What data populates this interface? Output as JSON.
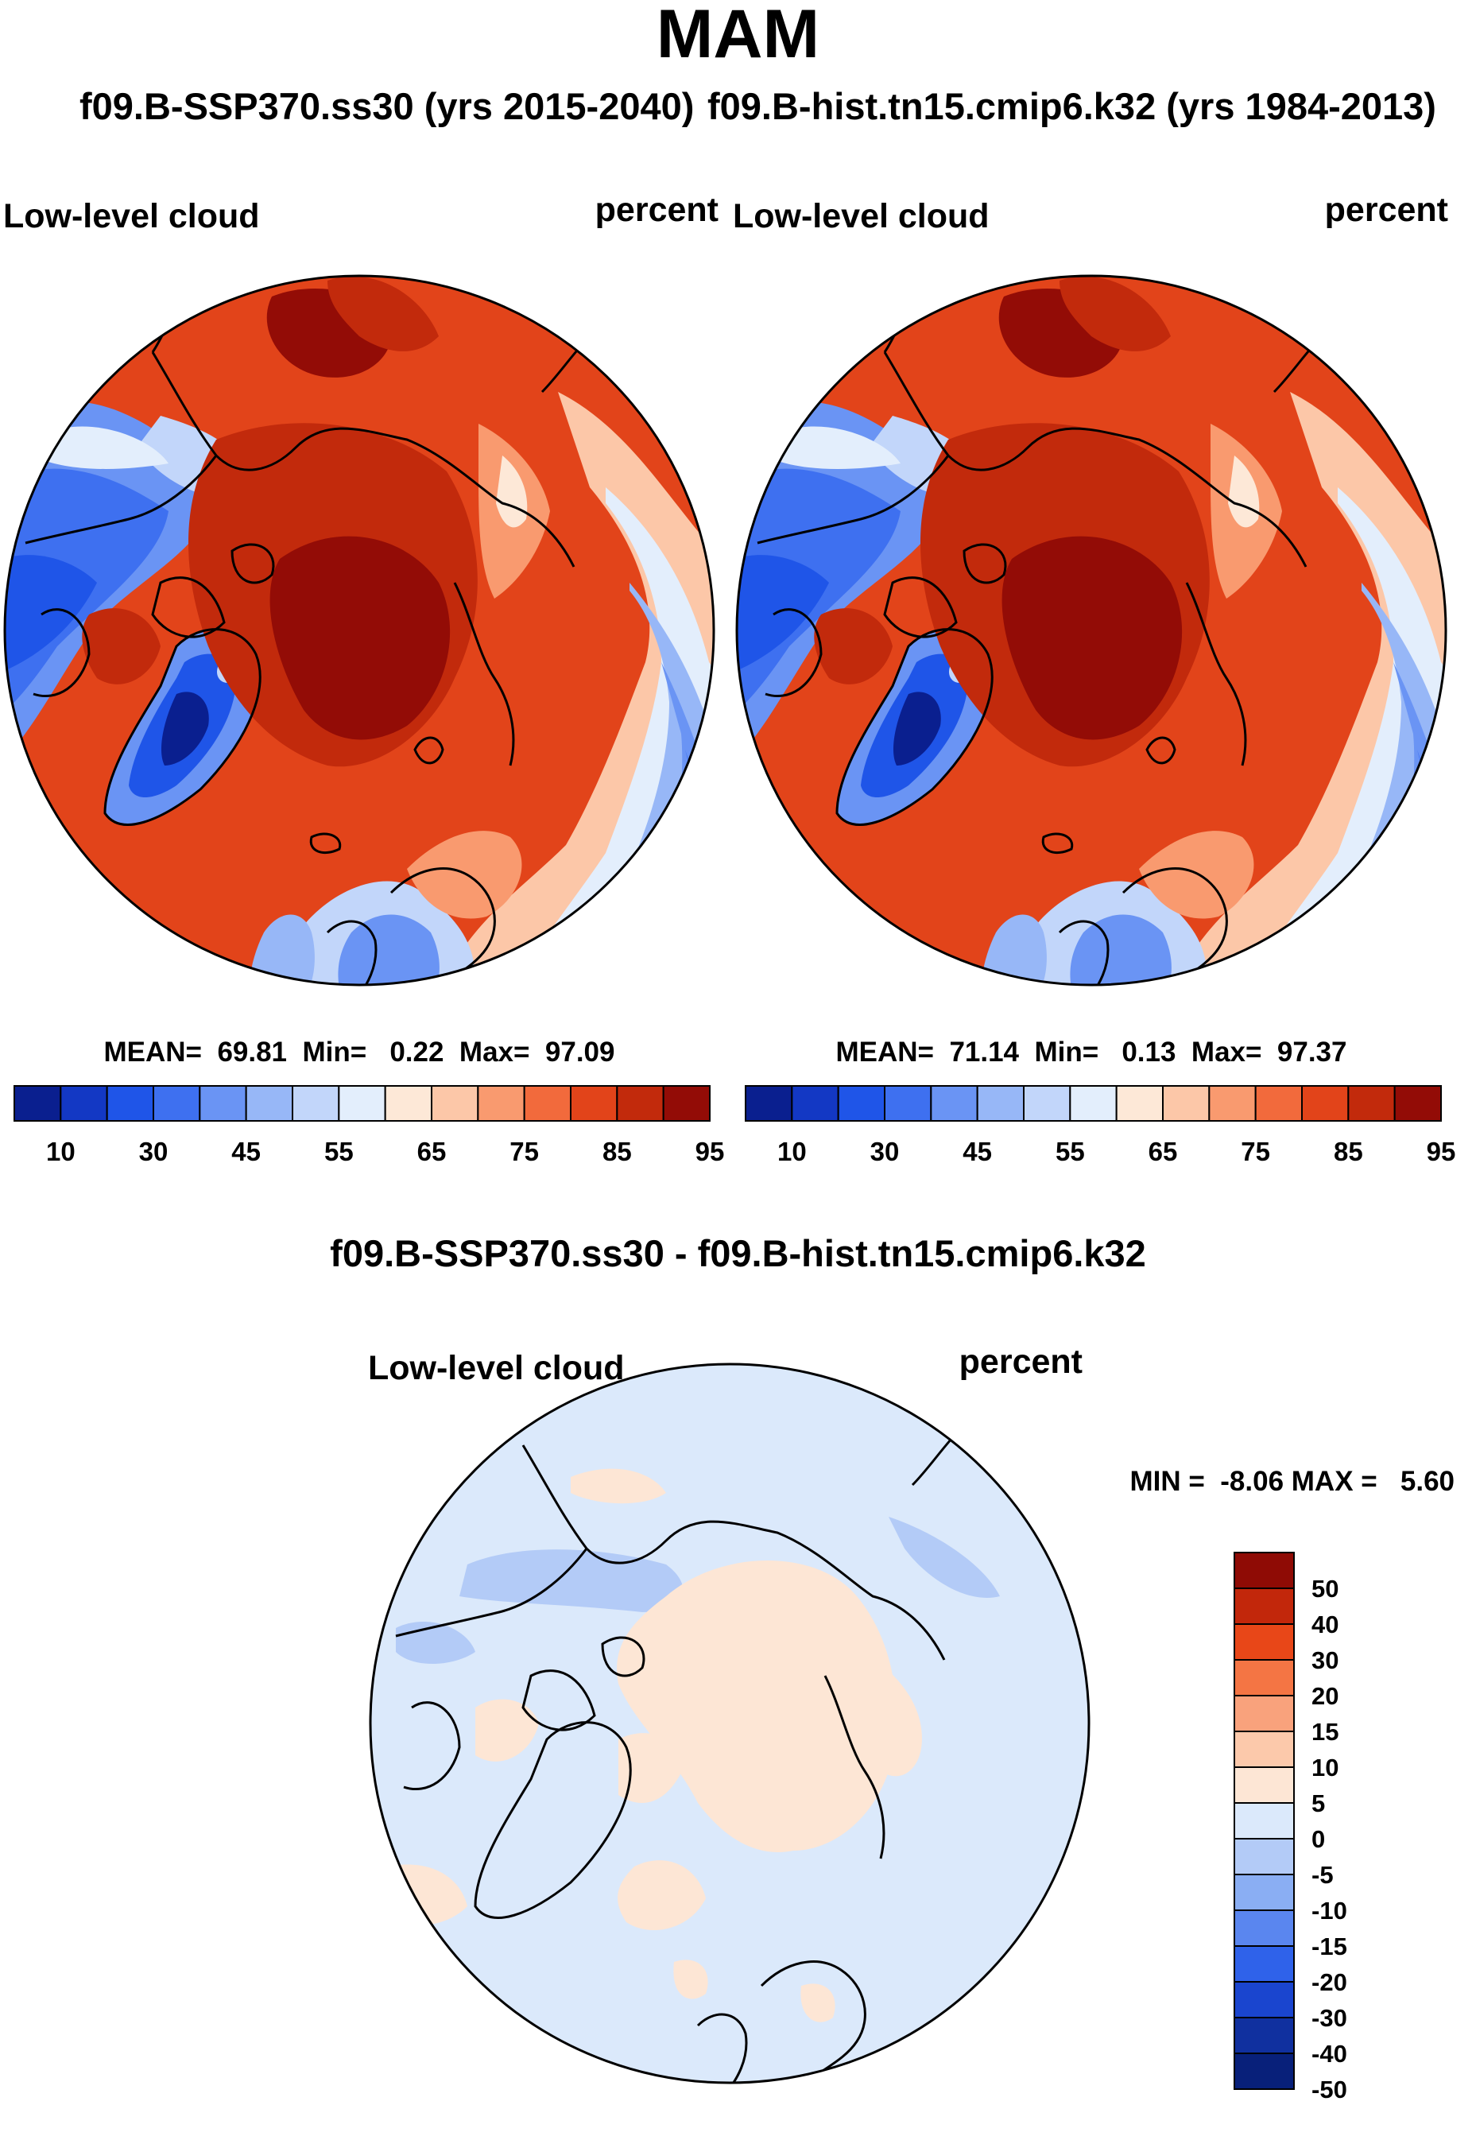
{
  "header": {
    "title": "MAM",
    "run_a": "f09.B-SSP370.ss30 (yrs 2015-2040)",
    "run_b": "f09.B-hist.tn15.cmip6.k32 (yrs 1984-2013)"
  },
  "panels": [
    {
      "variable": "Low-level cloud",
      "units": "percent",
      "stats_text": "MEAN=  69.81  Min=   0.22  Max=  97.09",
      "mean": 69.81,
      "min": 0.22,
      "max": 97.09
    },
    {
      "variable": "Low-level cloud",
      "units": "percent",
      "stats_text": "MEAN=  71.14  Min=   0.13  Max=  97.37",
      "mean": 71.14,
      "min": 0.13,
      "max": 97.37
    }
  ],
  "colorbar": {
    "ticks": [
      "10",
      "30",
      "45",
      "55",
      "65",
      "75",
      "85",
      "95"
    ],
    "colors": [
      "#0a1f8f",
      "#1338c4",
      "#1f55e8",
      "#3e70f0",
      "#6a94f4",
      "#97b7f7",
      "#c2d6fa",
      "#e3eefc",
      "#fde8d7",
      "#fcc7a8",
      "#f99a6f",
      "#f26a3c",
      "#e2441a",
      "#c22a0c",
      "#930c06"
    ]
  },
  "diff": {
    "title": "f09.B-SSP370.ss30 - f09.B-hist.tn15.cmip6.k32",
    "variable": "Low-level cloud",
    "units": "percent",
    "minmax_text": "MIN =  -8.06 MAX =   5.60",
    "min": -8.06,
    "max": 5.6,
    "colorbar_labels": [
      "50",
      "40",
      "30",
      "20",
      "15",
      "10",
      "5",
      "0",
      "-5",
      "-10",
      "-15",
      "-20",
      "-30",
      "-40",
      "-50"
    ],
    "colorbar_colors": [
      "#8f0b05",
      "#c2270b",
      "#e84718",
      "#f47544",
      "#f9a27c",
      "#fcc9ab",
      "#fde6d5",
      "#dbe9fb",
      "#b3cbf7",
      "#8aaef3",
      "#5a86ef",
      "#2f62ea",
      "#1a45cf",
      "#10309f",
      "#08207a"
    ]
  },
  "chart_data": [
    {
      "type": "heatmap",
      "title": "Low-level cloud",
      "units": "percent",
      "season": "MAM",
      "run": "f09.B-SSP370.ss30 (yrs 2015-2040)",
      "projection": "north polar stereographic",
      "levels": [
        10,
        20,
        30,
        40,
        45,
        50,
        55,
        60,
        65,
        70,
        75,
        80,
        85,
        90,
        95
      ],
      "mean": 69.81,
      "min": 0.22,
      "max": 97.09
    },
    {
      "type": "heatmap",
      "title": "Low-level cloud",
      "units": "percent",
      "season": "MAM",
      "run": "f09.B-hist.tn15.cmip6.k32 (yrs 1984-2013)",
      "projection": "north polar stereographic",
      "levels": [
        10,
        20,
        30,
        40,
        45,
        50,
        55,
        60,
        65,
        70,
        75,
        80,
        85,
        90,
        95
      ],
      "mean": 71.14,
      "min": 0.13,
      "max": 97.37
    },
    {
      "type": "heatmap",
      "title": "f09.B-SSP370.ss30 - f09.B-hist.tn15.cmip6.k32",
      "variable": "Low-level cloud",
      "units": "percent",
      "levels": [
        -50,
        -40,
        -30,
        -20,
        -15,
        -10,
        -5,
        0,
        5,
        10,
        15,
        20,
        30,
        40,
        50
      ],
      "min": -8.06,
      "max": 5.6
    }
  ]
}
